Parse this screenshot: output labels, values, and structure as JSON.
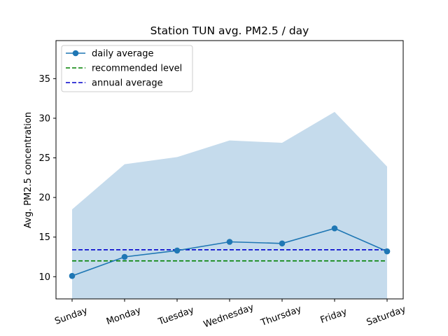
{
  "chart_data": {
    "type": "line",
    "title": "Station TUN avg. PM2.5 / day",
    "xlabel": "",
    "ylabel": "Avg. PM2.5 concentration",
    "categories": [
      "Sunday",
      "Monday",
      "Tuesday",
      "Wednesday",
      "Thursday",
      "Friday",
      "Saturday"
    ],
    "ylim": [
      7.2,
      39.8
    ],
    "yticks": [
      10,
      15,
      20,
      25,
      30,
      35
    ],
    "series": [
      {
        "name": "daily average",
        "kind": "line-markers",
        "color": "#1f77b4",
        "values": [
          10.1,
          12.5,
          13.3,
          14.4,
          14.2,
          16.1,
          13.2
        ]
      }
    ],
    "band": {
      "color": "#c5dbec",
      "lower": [
        7.2,
        7.2,
        7.2,
        7.2,
        7.2,
        7.2,
        7.2
      ],
      "upper": [
        18.5,
        24.2,
        25.1,
        27.2,
        26.9,
        30.8,
        23.9
      ]
    },
    "reference_lines": [
      {
        "name": "recommended level",
        "value": 12.0,
        "color": "#008000"
      },
      {
        "name": "annual average",
        "value": 13.4,
        "color": "#0000cc"
      }
    ],
    "legend_position": "top-left",
    "grid": false
  }
}
